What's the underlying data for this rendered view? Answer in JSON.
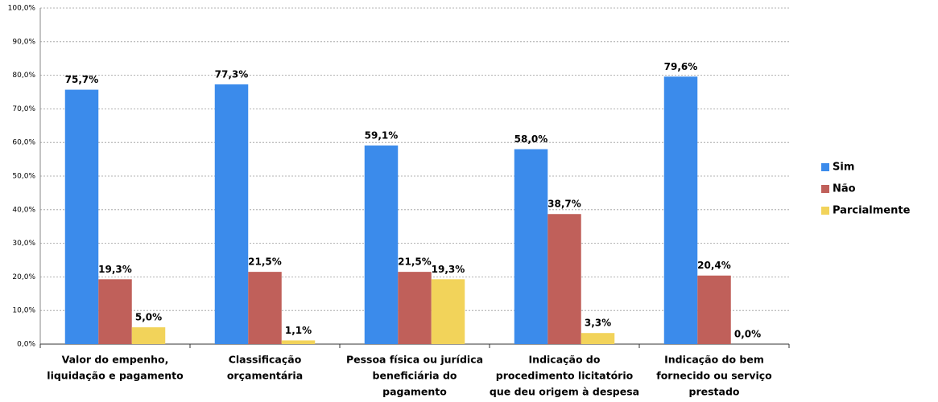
{
  "chart_data": {
    "type": "bar",
    "categories": [
      [
        "Valor do empenho,",
        "liquidação e pagamento"
      ],
      [
        "Classificação",
        "orçamentária"
      ],
      [
        "Pessoa física ou jurídica",
        "beneficiária do",
        "pagamento"
      ],
      [
        "Indicação do",
        "procedimento licitatório",
        "que deu origem à despesa"
      ],
      [
        "Indicação do bem",
        "fornecido ou serviço",
        "prestado"
      ]
    ],
    "series": [
      {
        "name": "Sim",
        "color": "#3b8beb",
        "values": [
          75.7,
          77.3,
          59.1,
          58.0,
          79.6
        ],
        "value_labels": [
          "75,7%",
          "77,3%",
          "59,1%",
          "58,0%",
          "79,6%"
        ]
      },
      {
        "name": "Não",
        "color": "#c0605a",
        "values": [
          19.3,
          21.5,
          21.5,
          38.7,
          20.4
        ],
        "value_labels": [
          "19,3%",
          "21,5%",
          "21,5%",
          "38,7%",
          "20,4%"
        ]
      },
      {
        "name": "Parcialmente",
        "color": "#f2d35a",
        "values": [
          5.0,
          1.1,
          19.3,
          3.3,
          0.0
        ],
        "value_labels": [
          "5,0%",
          "1,1%",
          "19,3%",
          "3,3%",
          "0,0%"
        ]
      }
    ],
    "ylim": [
      0,
      100
    ],
    "yticks": [
      {
        "value": 0,
        "label": "0,0%"
      },
      {
        "value": 10,
        "label": "10,0%"
      },
      {
        "value": 20,
        "label": "20,0%"
      },
      {
        "value": 30,
        "label": "30,0%"
      },
      {
        "value": 40,
        "label": "40,0%"
      },
      {
        "value": 50,
        "label": "50,0%"
      },
      {
        "value": 60,
        "label": "60,0%"
      },
      {
        "value": 70,
        "label": "70,0%"
      },
      {
        "value": 80,
        "label": "80,0%"
      },
      {
        "value": 90,
        "label": "90,0%"
      },
      {
        "value": 100,
        "label": "100,0%"
      }
    ],
    "grid": true,
    "legend": "right"
  }
}
